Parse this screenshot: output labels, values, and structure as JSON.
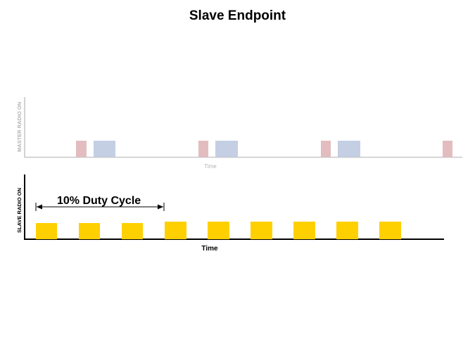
{
  "slide": {
    "title": "Slave Endpoint"
  },
  "master_timeline": {
    "y_label": "MASTER RADIO ON",
    "x_label": "Time",
    "axis_color": "#c8c8c8",
    "label_color": "#b4b4b4",
    "pulse_colors": {
      "pink": "#e3bcbf",
      "blue": "#c4cfe4"
    }
  },
  "slave_timeline": {
    "y_label": "SLAVE RADIO ON",
    "x_label": "Time",
    "axis_color": "#000000",
    "pulse_color": "#ffd000",
    "pulse_count": 9,
    "annotation": "10% Duty Cycle"
  }
}
